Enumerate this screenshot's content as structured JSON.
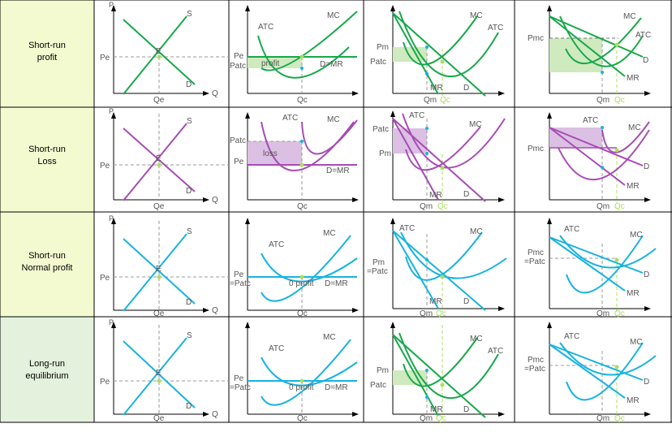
{
  "colors": {
    "profit": "#17a84a",
    "loss": "#a64cb4",
    "normal": "#17b3e0",
    "longrun": "#17a84a",
    "label_profit_bg": "#f4fad0",
    "label_loss_bg": "#f4fad0",
    "label_normal_bg": "#f4fad0",
    "label_longrun_bg": "#e4f1dc",
    "profit_fill": "#cfeabf",
    "loss_fill": "#dcc0e3",
    "text": "#555555",
    "axis": "#000000"
  },
  "rows": [
    {
      "label_line1": "Short-run",
      "label_line2": "profit",
      "theme": "profit",
      "market": {
        "p": "P",
        "s": "S",
        "d": "D",
        "e": "E",
        "pe": "Pe",
        "qe": "Qe",
        "q": "Q"
      },
      "firm": {
        "atc": "ATC",
        "mc": "MC",
        "pe": "Pe",
        "patc": "Patc",
        "area": "profit",
        "dmr": "D=MR",
        "qc": "Qc"
      },
      "monopoly": {
        "mc": "MC",
        "atc": "ATC",
        "pm": "Pm",
        "patc": "Patc",
        "mr": "MR",
        "d": "D",
        "qm": "Qm",
        "qc": "Qc"
      },
      "regulated": {
        "mc": "MC",
        "atc": "ATC",
        "pmc": "Pmc",
        "d": "D",
        "mr": "MR",
        "qm": "Qm",
        "qc": "Qc"
      }
    },
    {
      "label_line1": "Short-run",
      "label_line2": "Loss",
      "theme": "loss",
      "market": {
        "p": "P",
        "s": "S",
        "d": "D",
        "e": "E",
        "pe": "Pe",
        "qe": "Qe",
        "q": "Q"
      },
      "firm": {
        "atc": "ATC",
        "mc": "MC",
        "pe": "Pe",
        "patc": "Patc",
        "area": "loss",
        "dmr": "D=MR",
        "qc": "Qc"
      },
      "monopoly": {
        "atc": "ATC",
        "mc": "MC",
        "patc": "Patc",
        "pm": "Pm",
        "mr": "MR",
        "d": "D",
        "qm": "Qm",
        "qc": "Qc"
      },
      "regulated": {
        "atc": "ATC",
        "mc": "MC",
        "pmc": "Pmc",
        "d": "D",
        "mr": "MR",
        "qm": "Qm",
        "qc": "Qc"
      }
    },
    {
      "label_line1": "Short-run",
      "label_line2": "Normal profit",
      "theme": "normal",
      "market": {
        "p": "P",
        "s": "S",
        "d": "D",
        "e": "E",
        "pe": "Pe",
        "qe": "Qe",
        "q": "Q"
      },
      "firm": {
        "atc": "ATC",
        "mc": "MC",
        "pe1": "Pe",
        "pe2": "=Patc",
        "area": "0 profit",
        "dmr": "D=MR",
        "qc": "Qc"
      },
      "monopoly": {
        "atc": "ATC",
        "mc": "MC",
        "pm1": "Pm",
        "pm2": "=Patc",
        "mr": "MR",
        "d": "D",
        "qm": "Qm",
        "qc": "Qc"
      },
      "regulated": {
        "atc": "ATC",
        "mc": "MC",
        "pmc1": "Pmc",
        "pmc2": "=Patc",
        "d": "D",
        "mr": "MR",
        "qm": "Qm",
        "qc": "Qc"
      }
    },
    {
      "label_line1": "Long-run",
      "label_line2": "equilibrium",
      "theme": "longrun",
      "market": {
        "p": "P",
        "s": "S",
        "d": "D",
        "e": "E",
        "pe": "Pe",
        "qe": "Qe",
        "q": "Q"
      },
      "firm": {
        "atc": "ATC",
        "mc": "MC",
        "pe1": "Pe",
        "pe2": "=Patc",
        "area": "0 profit",
        "dmr": "D=MR",
        "qc": "Qc"
      },
      "monopoly": {
        "mc": "MC",
        "atc": "ATC",
        "pm": "Pm",
        "patc": "Patc",
        "mr": "MR",
        "d": "D",
        "qm": "Qm",
        "qc": "Qc"
      },
      "regulated": {
        "atc": "ATC",
        "mc": "MC",
        "pmc1": "Pmc",
        "pmc2": "=Patc",
        "d": "D",
        "mr": "MR",
        "qm": "Qm",
        "qc": "Qc"
      }
    }
  ]
}
